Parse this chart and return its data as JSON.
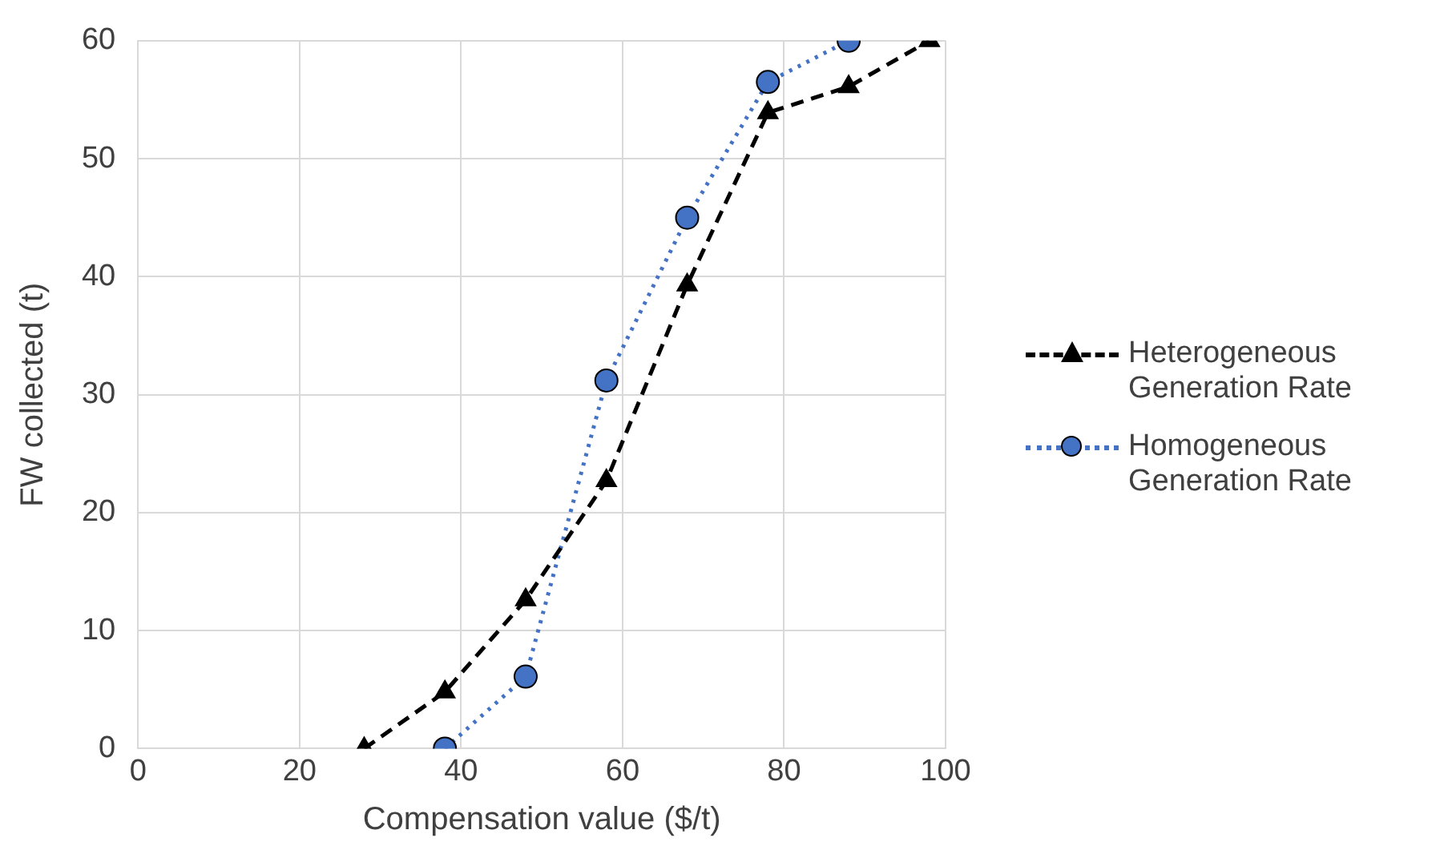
{
  "chart_data": {
    "type": "line",
    "xlabel": "Compensation value ($/t)",
    "ylabel": "FW collected (t)",
    "xlim": [
      0,
      100
    ],
    "xticks": [
      0,
      20,
      40,
      60,
      80,
      100
    ],
    "ylim": [
      0,
      60
    ],
    "yticks": [
      0,
      10,
      20,
      30,
      40,
      50,
      60
    ],
    "grid": true,
    "legend": "right",
    "series": [
      {
        "name": "Heterogeneous Generation Rate",
        "color": "#000000",
        "marker": "triangle",
        "line_style": "dashed",
        "x": [
          28,
          38,
          48,
          58,
          68,
          78,
          88,
          98
        ],
        "values": [
          0,
          4.8,
          12.6,
          22.7,
          39.3,
          53.9,
          56.1,
          60
        ]
      },
      {
        "name": "Homogeneous Generation Rate",
        "color": "#4472c4",
        "marker": "circle",
        "line_style": "dotted",
        "x": [
          38,
          48,
          58,
          68,
          78,
          88
        ],
        "values": [
          0,
          6.1,
          31.2,
          45,
          56.5,
          60
        ]
      }
    ]
  }
}
